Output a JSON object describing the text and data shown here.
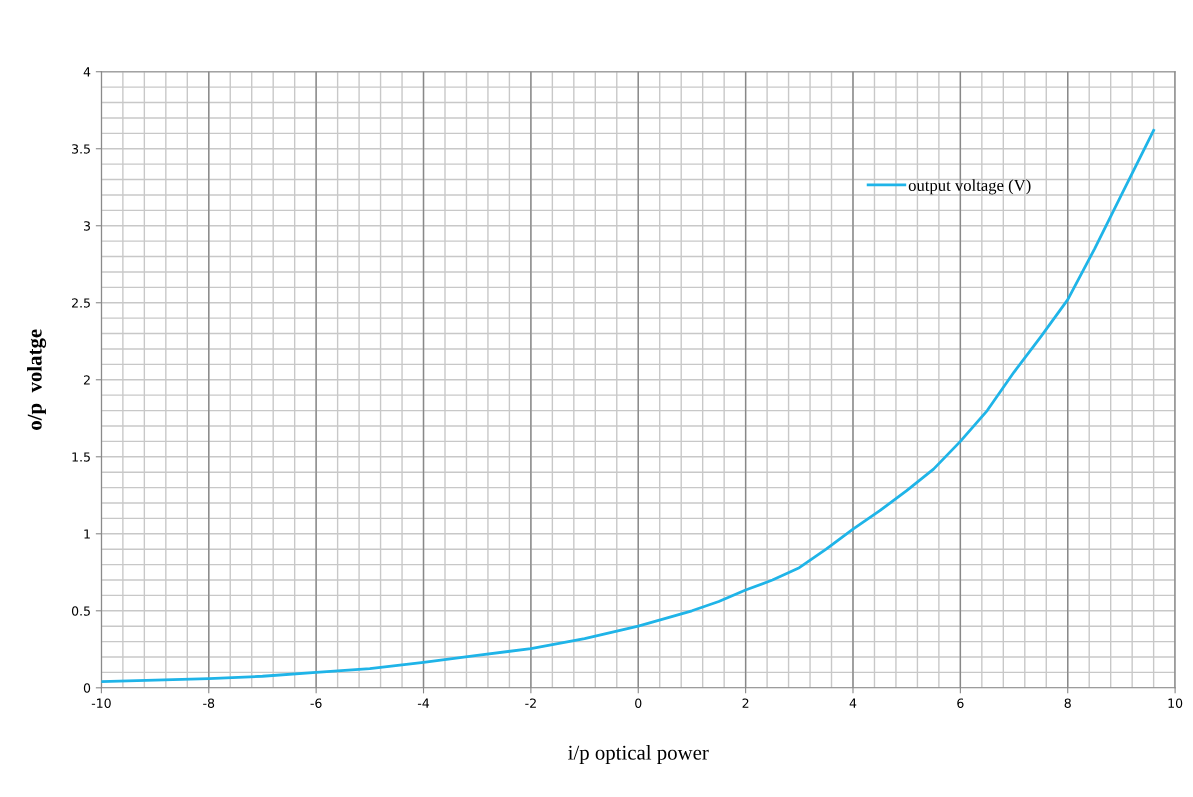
{
  "chart_data": {
    "type": "line",
    "xlabel": "i/p optical power",
    "ylabel": "o/p  volatge",
    "x": [
      -10,
      -9,
      -8,
      -7,
      -6,
      -5,
      -4,
      -3,
      -2,
      -1,
      0,
      1,
      1.5,
      2,
      2.5,
      3,
      3.5,
      4,
      4.5,
      5,
      5.5,
      6,
      6.5,
      7,
      7.5,
      8,
      8.5,
      9,
      9.6
    ],
    "series": [
      {
        "name": "output voltage (V)",
        "color": "#1fb4e8",
        "values": [
          0.04,
          0.05,
          0.06,
          0.075,
          0.1,
          0.125,
          0.165,
          0.21,
          0.255,
          0.32,
          0.4,
          0.5,
          0.56,
          0.635,
          0.7,
          0.78,
          0.9,
          1.03,
          1.15,
          1.28,
          1.42,
          1.6,
          1.8,
          2.05,
          2.28,
          2.52,
          2.85,
          3.2,
          3.62
        ]
      }
    ],
    "xlim": [
      -10,
      10
    ],
    "xticks": [
      -10,
      -8,
      -6,
      -4,
      -2,
      0,
      2,
      4,
      6,
      8,
      10
    ],
    "ylim": [
      0,
      4
    ],
    "yticks": [
      0,
      0.5,
      1,
      1.5,
      2,
      2.5,
      3,
      3.5,
      4
    ],
    "grid": true,
    "legend": "top right",
    "marker": "none",
    "line_style": "solid"
  }
}
